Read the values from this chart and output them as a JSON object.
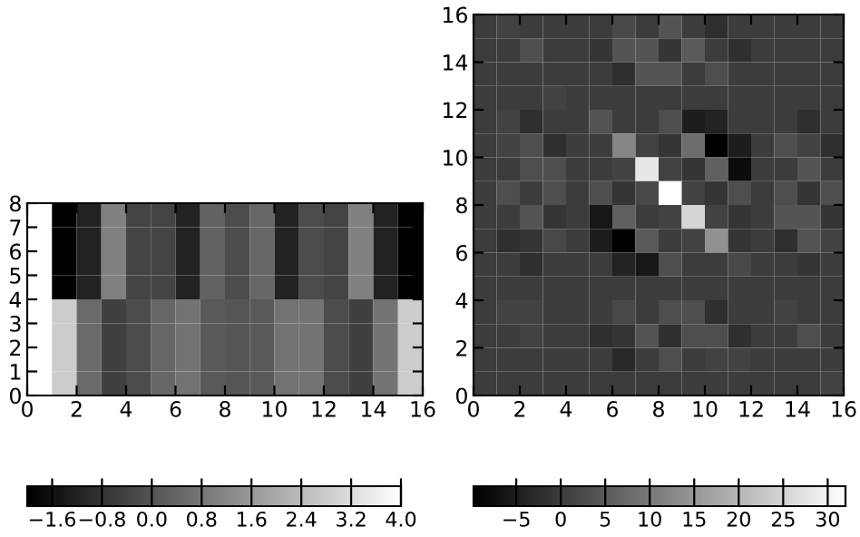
{
  "chart_data": [
    {
      "type": "heatmap",
      "xlim": [
        0,
        16
      ],
      "ylim": [
        0,
        8
      ],
      "xticks": [
        0,
        2,
        4,
        6,
        8,
        10,
        12,
        14,
        16
      ],
      "yticks": [
        0,
        1,
        2,
        3,
        4,
        5,
        6,
        7,
        8
      ],
      "cells": [
        [
          4.0,
          -2.0,
          -1.2,
          1.0,
          -0.4,
          -0.4,
          -1.2,
          0.3,
          -0.2,
          0.4,
          -1.2,
          -0.2,
          -0.4,
          1.0,
          -1.2,
          -2.0
        ],
        [
          4.0,
          -2.0,
          -1.2,
          1.0,
          -0.4,
          -0.4,
          -1.2,
          0.3,
          -0.2,
          0.4,
          -1.2,
          -0.2,
          -0.4,
          1.0,
          -1.2,
          -2.0
        ],
        [
          4.0,
          -2.0,
          -1.2,
          1.0,
          -0.4,
          -0.4,
          -1.2,
          0.3,
          -0.2,
          0.4,
          -1.2,
          -0.2,
          -0.4,
          1.0,
          -1.2,
          -2.0
        ],
        [
          4.0,
          -2.0,
          -1.2,
          1.0,
          -0.4,
          -0.4,
          -1.2,
          0.3,
          -0.2,
          0.4,
          -1.2,
          -0.2,
          -0.4,
          1.0,
          -1.2,
          -2.0
        ],
        [
          4.0,
          2.8,
          0.5,
          -0.5,
          -0.2,
          0.4,
          0.7,
          0.1,
          0.0,
          0.1,
          0.7,
          0.7,
          -0.2,
          -0.5,
          0.7,
          2.8
        ],
        [
          4.0,
          2.8,
          0.5,
          -0.5,
          -0.2,
          0.4,
          0.7,
          0.1,
          0.0,
          0.1,
          0.7,
          0.7,
          -0.2,
          -0.5,
          0.7,
          2.8
        ],
        [
          4.0,
          2.8,
          0.5,
          -0.5,
          -0.2,
          0.4,
          0.7,
          0.1,
          0.0,
          0.1,
          0.7,
          0.7,
          -0.2,
          -0.5,
          0.7,
          2.8
        ],
        [
          4.0,
          2.8,
          0.5,
          -0.5,
          -0.2,
          0.4,
          0.7,
          0.1,
          0.0,
          0.1,
          0.7,
          0.7,
          -0.2,
          -0.5,
          0.7,
          2.8
        ]
      ],
      "clim": [
        -2.0,
        4.0
      ],
      "cticks": [
        {
          "value": -1.6,
          "label": "−1.6"
        },
        {
          "value": -0.8,
          "label": "−0.8"
        },
        {
          "value": 0.0,
          "label": "0.0"
        },
        {
          "value": 0.8,
          "label": "0.8"
        },
        {
          "value": 1.6,
          "label": "1.6"
        },
        {
          "value": 2.4,
          "label": "2.4"
        },
        {
          "value": 3.2,
          "label": "3.2"
        },
        {
          "value": 4.0,
          "label": "4.0"
        }
      ]
    },
    {
      "type": "heatmap",
      "xlim": [
        0,
        16
      ],
      "ylim": [
        0,
        16
      ],
      "xticks": [
        0,
        2,
        4,
        6,
        8,
        10,
        12,
        14,
        16
      ],
      "yticks": [
        0,
        2,
        4,
        6,
        8,
        10,
        12,
        14,
        16
      ],
      "cells": [
        [
          0,
          1,
          0,
          0,
          0,
          0,
          2,
          0,
          4,
          0,
          -2,
          0,
          0,
          0,
          0,
          0
        ],
        [
          0,
          0,
          3,
          0,
          0,
          -1,
          4,
          4,
          -1,
          5,
          0,
          -2,
          0,
          0,
          0,
          0
        ],
        [
          0,
          0,
          0,
          0,
          0,
          0,
          -2,
          4,
          4,
          0,
          3,
          0,
          0,
          0,
          0,
          0
        ],
        [
          0,
          0,
          0,
          1,
          0,
          0,
          0,
          0,
          0,
          0,
          0,
          0,
          0,
          0,
          0,
          0
        ],
        [
          0,
          1,
          -2,
          0,
          0,
          4,
          0,
          0,
          3,
          -5,
          -4,
          0,
          0,
          0,
          -2,
          0
        ],
        [
          0,
          1,
          3,
          -2,
          0,
          0,
          12,
          1,
          -1,
          8,
          -9.8,
          -5,
          0,
          3,
          1,
          -2
        ],
        [
          0,
          0,
          3,
          3,
          0,
          0,
          1,
          28,
          1,
          -1,
          6,
          -8,
          0,
          0,
          4,
          0
        ],
        [
          0,
          3,
          0,
          3,
          0,
          3,
          -1,
          2,
          32,
          1,
          -1,
          3,
          0,
          3,
          -1,
          3
        ],
        [
          0,
          0,
          4,
          -1,
          0,
          -6,
          6,
          0,
          1,
          25,
          1,
          -1,
          0,
          4,
          4,
          -1
        ],
        [
          0,
          -2,
          -1,
          2,
          0,
          -5,
          -9.8,
          5,
          0,
          1,
          14,
          -1,
          0,
          -2,
          4,
          1
        ],
        [
          0,
          0,
          -2,
          0,
          0,
          0,
          -4,
          -6,
          3,
          0,
          0,
          2,
          0,
          0,
          -1,
          0
        ],
        [
          0,
          0,
          0,
          0,
          0,
          0,
          0,
          0,
          0,
          0,
          0,
          0,
          0,
          0,
          0,
          0
        ],
        [
          0,
          1,
          1,
          0,
          0,
          0,
          2,
          0,
          3,
          3,
          -2,
          0,
          0,
          1,
          0,
          0
        ],
        [
          0,
          0,
          1,
          0,
          0,
          -2,
          -1,
          4,
          -2,
          3,
          3,
          -2,
          0,
          0,
          3,
          0
        ],
        [
          0,
          0,
          0,
          0,
          0,
          0,
          -3,
          0,
          3,
          0,
          1,
          1,
          0,
          0,
          0,
          0
        ],
        [
          0,
          0,
          0,
          0,
          0,
          0,
          0,
          0,
          0,
          0,
          0,
          0,
          0,
          0,
          0,
          1
        ]
      ],
      "clim": [
        -9.8,
        32
      ],
      "cticks": [
        {
          "value": -5,
          "label": "−5"
        },
        0,
        5,
        10,
        15,
        20,
        25,
        30
      ]
    }
  ]
}
